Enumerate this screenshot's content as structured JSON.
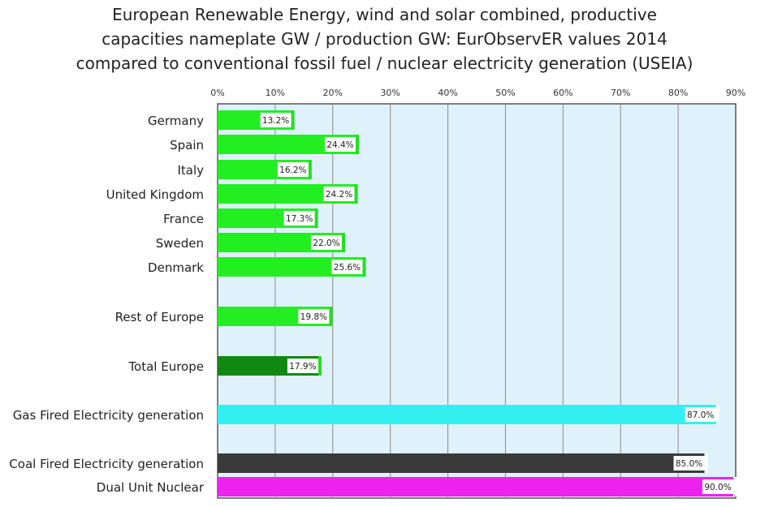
{
  "chart_data": {
    "type": "bar",
    "orientation": "horizontal",
    "title_lines": [
      "European Renewable Energy, wind and solar combined, productive",
      "capacities  nameplate GW  /  production GW:  EurObservER values 2014",
      "compared to conventional fossil fuel / nuclear electricity generation (USEIA)"
    ],
    "x_ticks": [
      "0%",
      "10%",
      "20%",
      "30%",
      "40%",
      "50%",
      "60%",
      "70%",
      "80%",
      "90%"
    ],
    "xlim": [
      0,
      90
    ],
    "x_axis_position": "top",
    "grid": true,
    "plot_background": "#dff2fb",
    "categories": [
      "Germany",
      "Spain",
      "Italy",
      "United Kingdom",
      "France",
      "Sweden",
      "Denmark",
      "Rest of Europe",
      "Total Europe",
      "Gas Fired Electricity generation",
      "Coal Fired Electricity generation",
      "Dual Unit Nuclear"
    ],
    "values": [
      13.2,
      24.4,
      16.2,
      24.2,
      17.3,
      22.0,
      25.6,
      19.8,
      17.9,
      87.0,
      85.0,
      90.0
    ],
    "value_labels": [
      "13.2%",
      "24.4%",
      "16.2%",
      "24.2%",
      "17.3%",
      "22.0%",
      "25.6%",
      "19.8%",
      "17.9%",
      "87.0%",
      "85.0%",
      "90.0%"
    ],
    "colors": [
      "#22ee22",
      "#22ee22",
      "#22ee22",
      "#22ee22",
      "#22ee22",
      "#22ee22",
      "#22ee22",
      "#22ee22",
      "#118811",
      "#33f0f0",
      "#3a3a3a",
      "#ee22ee"
    ],
    "cap_color": "#22dd22",
    "label_bg": "#ffffff"
  }
}
